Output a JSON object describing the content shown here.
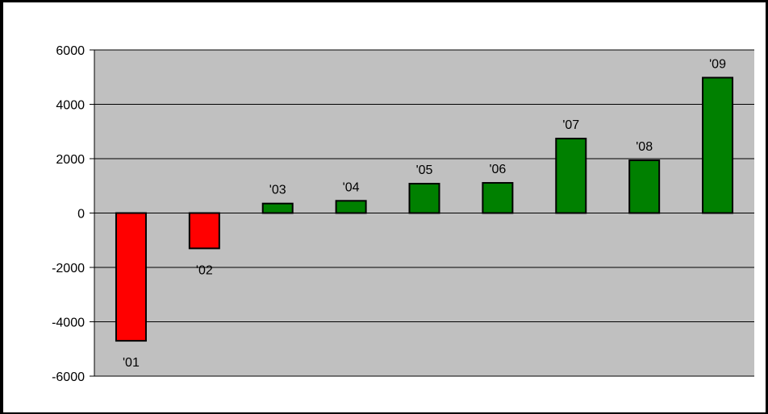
{
  "chart_data": {
    "type": "bar",
    "categories": [
      "'01",
      "'02",
      "'03",
      "'04",
      "'05",
      "'06",
      "'07",
      "'08",
      "'09"
    ],
    "values": [
      -4700,
      -1300,
      350,
      450,
      1080,
      1110,
      2740,
      1940,
      4980
    ],
    "ylim": [
      -6000,
      6000
    ],
    "yticks": [
      "6000",
      "4000",
      "2000",
      "0",
      "-2000",
      "-4000",
      "-6000"
    ],
    "grid": true,
    "legend": "none",
    "colors": {
      "positive": "#008000",
      "negative": "#ff0000",
      "plot_bg": "#c0c0c0",
      "bar_border": "#000000"
    }
  }
}
